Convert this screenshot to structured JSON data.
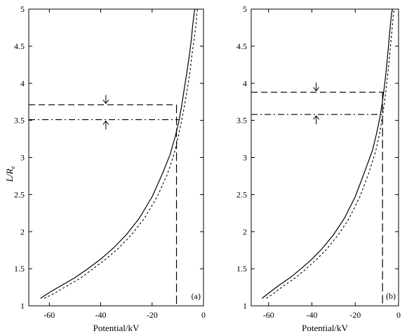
{
  "chart_data": [
    {
      "type": "line",
      "panel_label": "(a)",
      "xlabel": "Potential/kV",
      "ylabel": "L/R",
      "ylabel_sub": "e",
      "xlim": [
        -68,
        0
      ],
      "ylim": [
        1,
        5
      ],
      "xticks": [
        -60,
        -40,
        -20,
        0
      ],
      "xtick_labels": [
        "-60",
        "-40",
        "-20",
        "0"
      ],
      "yticks": [
        1,
        1.5,
        2,
        2.5,
        3,
        3.5,
        4,
        4.5,
        5
      ],
      "ytick_labels": [
        "1",
        "1.5",
        "2",
        "2.5",
        "3",
        "3.5",
        "4",
        "4.5",
        "5"
      ],
      "series": [
        {
          "style": "solid",
          "x": [
            -63.5,
            -60,
            -55,
            -50,
            -45,
            -40,
            -35,
            -30,
            -25,
            -20,
            -16,
            -13,
            -11,
            -9.5,
            -8.5,
            -7.5,
            -6.5,
            -5.5,
            -4.7,
            -4.3,
            -3.8,
            -3.4
          ],
          "y": [
            1.1,
            1.18,
            1.28,
            1.38,
            1.5,
            1.63,
            1.78,
            1.96,
            2.18,
            2.47,
            2.78,
            3.04,
            3.28,
            3.5,
            3.7,
            3.92,
            4.14,
            4.38,
            4.6,
            4.75,
            4.9,
            5.0
          ]
        },
        {
          "style": "dotted",
          "x": [
            -62,
            -58,
            -53,
            -48,
            -43,
            -38,
            -33,
            -28,
            -23,
            -18,
            -14,
            -11.5,
            -9.8,
            -8.5,
            -7.4,
            -6.3,
            -5.3,
            -4.5,
            -3.6,
            -2.9,
            -2.4
          ],
          "y": [
            1.1,
            1.17,
            1.27,
            1.37,
            1.5,
            1.63,
            1.78,
            1.96,
            2.18,
            2.47,
            2.78,
            3.04,
            3.28,
            3.5,
            3.7,
            3.92,
            4.14,
            4.38,
            4.6,
            4.8,
            5.0
          ]
        }
      ],
      "reference_lines": [
        {
          "style": "dash",
          "y": 3.71,
          "x_end": -10.5,
          "arrow": "down",
          "arrow_x": -38
        },
        {
          "style": "dashdot",
          "y": 3.51,
          "x_end": -9.6,
          "arrow": "up",
          "arrow_x": -38
        },
        {
          "style": "longdash",
          "x": -10.5,
          "y_top": 3.71
        }
      ]
    },
    {
      "type": "line",
      "panel_label": "(b)",
      "xlabel": "Potential/kV",
      "xlim": [
        -68,
        0
      ],
      "ylim": [
        1,
        5
      ],
      "xticks": [
        -60,
        -40,
        -20,
        0
      ],
      "xtick_labels": [
        "-60",
        "-40",
        "-20",
        "0"
      ],
      "yticks": [
        1,
        1.5,
        2,
        2.5,
        3,
        3.5,
        4,
        4.5,
        5
      ],
      "ytick_labels": [
        "1",
        "1.5",
        "2",
        "2.5",
        "3",
        "3.5",
        "4",
        "4.5",
        "5"
      ],
      "series": [
        {
          "style": "solid",
          "x": [
            -63,
            -60,
            -55,
            -50,
            -45,
            -40,
            -35,
            -30,
            -25,
            -20,
            -16,
            -12,
            -10,
            -8.5,
            -7.5,
            -6.7,
            -5.9,
            -5.2,
            -4.6,
            -4.1,
            -3.6,
            -3.2,
            -2.8
          ],
          "y": [
            1.1,
            1.17,
            1.28,
            1.38,
            1.5,
            1.63,
            1.78,
            1.96,
            2.18,
            2.47,
            2.78,
            3.1,
            3.34,
            3.56,
            3.74,
            3.92,
            4.12,
            4.32,
            4.52,
            4.68,
            4.84,
            4.95,
            5.0
          ]
        },
        {
          "style": "dotted",
          "x": [
            -61,
            -58,
            -53,
            -48,
            -43,
            -38,
            -33,
            -28,
            -23,
            -18,
            -14,
            -10.5,
            -8.7,
            -7.4,
            -6.4,
            -5.6,
            -4.8,
            -4.1,
            -3.4,
            -2.8,
            -2.4,
            -2.1
          ],
          "y": [
            1.1,
            1.16,
            1.27,
            1.37,
            1.49,
            1.62,
            1.77,
            1.95,
            2.17,
            2.46,
            2.77,
            3.09,
            3.33,
            3.56,
            3.76,
            3.96,
            4.17,
            4.38,
            4.6,
            4.8,
            4.92,
            5.0
          ]
        }
      ],
      "reference_lines": [
        {
          "style": "dash",
          "y": 3.88,
          "x_end": -6.8,
          "arrow": "down",
          "arrow_x": -38
        },
        {
          "style": "dashdot",
          "y": 3.58,
          "x_end": -6.8,
          "arrow": "up",
          "arrow_x": -38
        },
        {
          "style": "longdash",
          "x": -7.4,
          "y_top": 3.88
        }
      ]
    }
  ]
}
